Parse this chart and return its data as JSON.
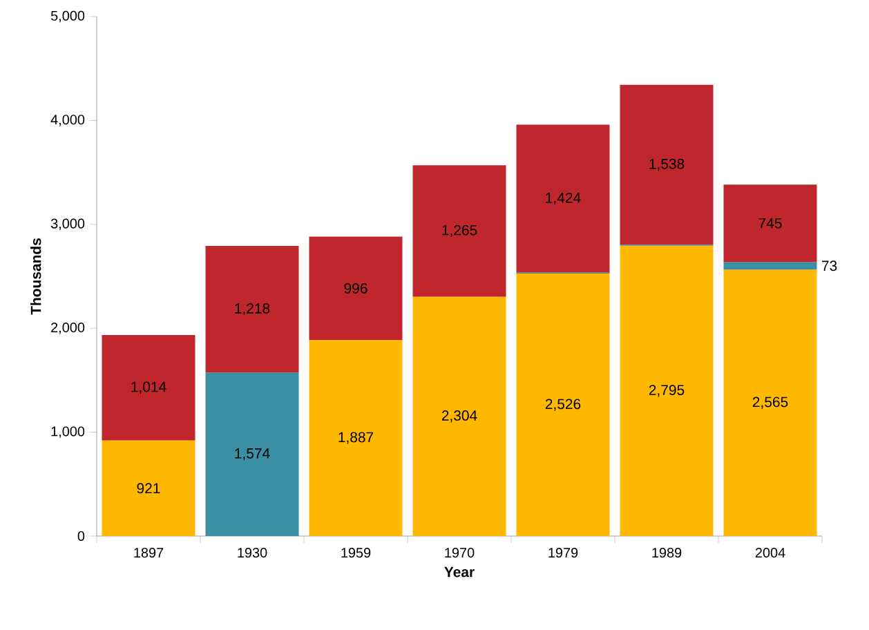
{
  "chart_data": {
    "type": "bar",
    "stacked": true,
    "xlabel": "Year",
    "ylabel": "Thousands",
    "categories": [
      "1897",
      "1930",
      "1959",
      "1970",
      "1979",
      "1989",
      "2004"
    ],
    "series": [
      {
        "color": "#ffb800",
        "values": [
          921,
          null,
          1887,
          2304,
          2526,
          2795,
          2565
        ],
        "value_labels": [
          "921",
          null,
          "1,887",
          "2,304",
          "2,526",
          "2,795",
          "2,565"
        ]
      },
      {
        "color": "#3a8fa3",
        "values": [
          null,
          1574,
          null,
          null,
          10,
          10,
          73
        ],
        "value_labels": [
          null,
          "1,574",
          null,
          null,
          null,
          null,
          "73"
        ]
      },
      {
        "color": "#c0272d",
        "values": [
          1014,
          1218,
          996,
          1265,
          1424,
          1538,
          745
        ],
        "value_labels": [
          "1,014",
          "1,218",
          "996",
          "1,265",
          "1,424",
          "1,538",
          "745"
        ]
      }
    ],
    "ylim": [
      0,
      5000
    ],
    "yticks": [
      0,
      {
        "value": 1000,
        "label": "1,000"
      },
      {
        "value": 2000,
        "label": "2,000"
      },
      {
        "value": 3000,
        "label": "3,000"
      },
      {
        "value": 4000,
        "label": "4,000"
      },
      {
        "value": 5000,
        "label": "5,000"
      }
    ],
    "grid": false
  }
}
